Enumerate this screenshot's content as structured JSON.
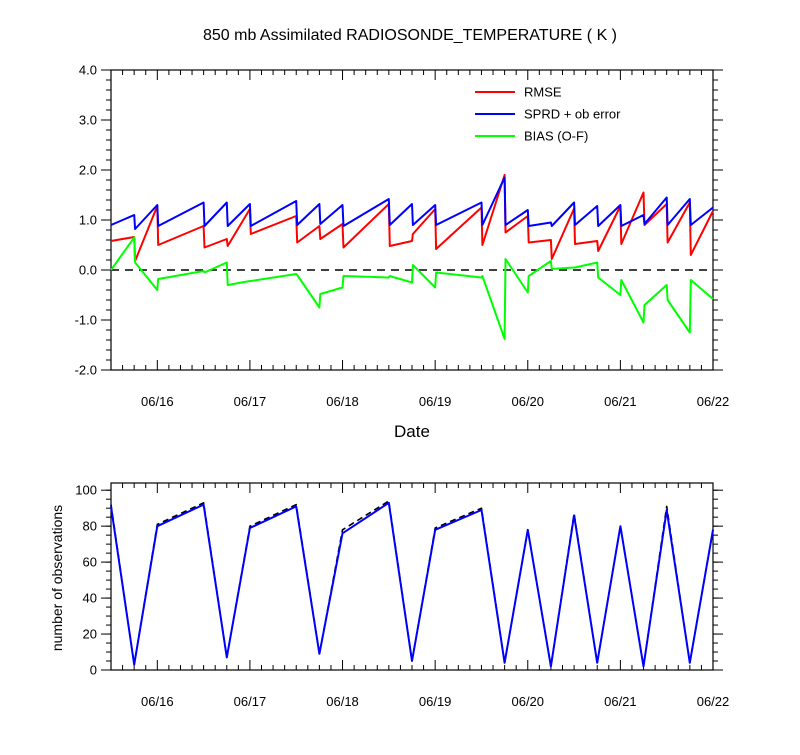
{
  "chart_data": [
    {
      "type": "line",
      "title": "850 mb Assimilated RADIOSONDE_TEMPERATURE ( K )",
      "xlabel": "Date",
      "ylabel": "",
      "ylim": [
        -2.0,
        4.0
      ],
      "xlim": [
        0,
        6.5
      ],
      "ytick_labels": [
        "4.0",
        "3.0",
        "2.0",
        "1.0",
        "0.0",
        "-1.0",
        "-2.0"
      ],
      "ytick_values": [
        4.0,
        3.0,
        2.0,
        1.0,
        0.0,
        -1.0,
        -2.0
      ],
      "xtick_labels": [
        "06/16",
        "06/17",
        "06/18",
        "06/19",
        "06/20",
        "06/21",
        "06/22"
      ],
      "xtick_values": [
        0.5,
        1.5,
        2.5,
        3.5,
        4.5,
        5.5,
        6.5
      ],
      "zero_line": 0.0,
      "legend_position": "top-right",
      "series": [
        {
          "name": "RMSE",
          "color": "#ff0000",
          "x": [
            0.0,
            0.25,
            0.26,
            0.5,
            0.51,
            1.0,
            1.01,
            1.25,
            1.26,
            1.5,
            1.51,
            2.0,
            2.01,
            2.25,
            2.26,
            2.5,
            2.51,
            3.0,
            3.01,
            3.25,
            3.26,
            3.5,
            3.51,
            4.0,
            4.01,
            4.25,
            4.26,
            4.5,
            4.51,
            4.75,
            4.76,
            5.0,
            5.01,
            5.25,
            5.26,
            5.5,
            5.51,
            5.75,
            5.76,
            6.0,
            6.01,
            6.25,
            6.26,
            6.5
          ],
          "y": [
            0.58,
            0.66,
            0.18,
            1.28,
            0.5,
            0.88,
            0.45,
            0.62,
            0.48,
            1.22,
            0.72,
            1.08,
            0.55,
            0.88,
            0.62,
            0.92,
            0.45,
            1.32,
            0.48,
            0.58,
            0.72,
            1.22,
            0.42,
            1.25,
            0.5,
            1.9,
            0.75,
            1.08,
            0.55,
            0.6,
            0.22,
            1.23,
            0.52,
            0.58,
            0.38,
            1.28,
            0.52,
            1.55,
            0.9,
            1.32,
            0.55,
            1.35,
            0.3,
            1.18
          ]
        },
        {
          "name": "SPRD + ob error",
          "color": "#0000ff",
          "x": [
            0.0,
            0.25,
            0.26,
            0.5,
            0.51,
            1.0,
            1.01,
            1.25,
            1.26,
            1.5,
            1.51,
            2.0,
            2.01,
            2.25,
            2.26,
            2.5,
            2.51,
            3.0,
            3.01,
            3.25,
            3.26,
            3.5,
            3.51,
            4.0,
            4.01,
            4.25,
            4.26,
            4.5,
            4.51,
            4.75,
            4.76,
            5.0,
            5.01,
            5.25,
            5.26,
            5.5,
            5.51,
            5.75,
            5.76,
            6.0,
            6.01,
            6.25,
            6.26,
            6.5
          ],
          "y": [
            0.9,
            1.1,
            0.82,
            1.3,
            0.88,
            1.35,
            0.88,
            1.35,
            0.88,
            1.32,
            0.88,
            1.38,
            0.9,
            1.32,
            0.92,
            1.3,
            0.88,
            1.42,
            0.9,
            1.32,
            0.9,
            1.3,
            0.9,
            1.35,
            0.9,
            1.85,
            0.9,
            1.2,
            0.88,
            0.95,
            0.88,
            1.35,
            0.9,
            1.28,
            0.88,
            1.3,
            0.88,
            1.1,
            0.92,
            1.45,
            0.9,
            1.42,
            0.9,
            1.25
          ]
        },
        {
          "name": "BIAS (O-F)",
          "color": "#00ff00",
          "x": [
            0.0,
            0.25,
            0.26,
            0.5,
            0.51,
            1.0,
            1.01,
            1.25,
            1.26,
            1.5,
            1.51,
            2.0,
            2.01,
            2.25,
            2.26,
            2.5,
            2.51,
            3.0,
            3.01,
            3.25,
            3.26,
            3.5,
            3.51,
            4.0,
            4.01,
            4.25,
            4.26,
            4.5,
            4.51,
            4.75,
            4.76,
            5.0,
            5.01,
            5.25,
            5.26,
            5.5,
            5.51,
            5.75,
            5.76,
            6.0,
            6.01,
            6.25,
            6.26,
            6.5
          ],
          "y": [
            0.0,
            0.65,
            0.15,
            -0.4,
            -0.18,
            -0.02,
            -0.05,
            0.15,
            -0.3,
            -0.22,
            -0.22,
            -0.08,
            -0.1,
            -0.75,
            -0.48,
            -0.35,
            -0.12,
            -0.15,
            -0.12,
            -0.25,
            0.1,
            -0.35,
            -0.05,
            -0.15,
            -0.12,
            -1.38,
            0.22,
            -0.45,
            -0.12,
            0.18,
            0.02,
            0.05,
            0.05,
            0.15,
            -0.15,
            -0.5,
            -0.2,
            -1.05,
            -0.7,
            -0.3,
            -0.6,
            -1.25,
            -0.2,
            -0.58
          ]
        }
      ]
    },
    {
      "type": "line",
      "title": "",
      "xlabel": "",
      "ylabel": "number of observations",
      "ylim": [
        0,
        104
      ],
      "xlim": [
        0,
        6.5
      ],
      "ytick_labels": [
        "100",
        "80",
        "60",
        "40",
        "20",
        "0"
      ],
      "ytick_values": [
        100,
        80,
        60,
        40,
        20,
        0
      ],
      "xtick_labels": [
        "06/16",
        "06/17",
        "06/18",
        "06/19",
        "06/20",
        "06/21",
        "06/22"
      ],
      "xtick_values": [
        0.5,
        1.5,
        2.5,
        3.5,
        4.5,
        5.5,
        6.5
      ],
      "series": [
        {
          "name": "observations (dashed)",
          "color": "#000000",
          "dash": true,
          "x": [
            0.0,
            0.25,
            0.5,
            1.0,
            1.25,
            1.5,
            2.0,
            2.25,
            2.5,
            3.0,
            3.25,
            3.5,
            4.0,
            4.25,
            4.5,
            4.75,
            5.0,
            5.25,
            5.5,
            5.75,
            6.0,
            6.25,
            6.5
          ],
          "y": [
            92,
            3,
            81,
            93,
            7,
            80,
            92,
            9,
            78,
            94,
            5,
            79,
            90,
            4,
            78,
            2,
            87,
            4,
            80,
            2,
            91,
            4,
            78
          ]
        },
        {
          "name": "observations",
          "color": "#0000ff",
          "dash": false,
          "x": [
            0.0,
            0.25,
            0.5,
            1.0,
            1.25,
            1.5,
            2.0,
            2.25,
            2.5,
            3.0,
            3.25,
            3.5,
            4.0,
            4.25,
            4.5,
            4.75,
            5.0,
            5.25,
            5.5,
            5.75,
            6.0,
            6.25,
            6.5
          ],
          "y": [
            91,
            3,
            80,
            92,
            7,
            79,
            91,
            9,
            76,
            93,
            5,
            78,
            89,
            4,
            78,
            2,
            86,
            4,
            80,
            2,
            89,
            4,
            78
          ]
        }
      ]
    }
  ]
}
